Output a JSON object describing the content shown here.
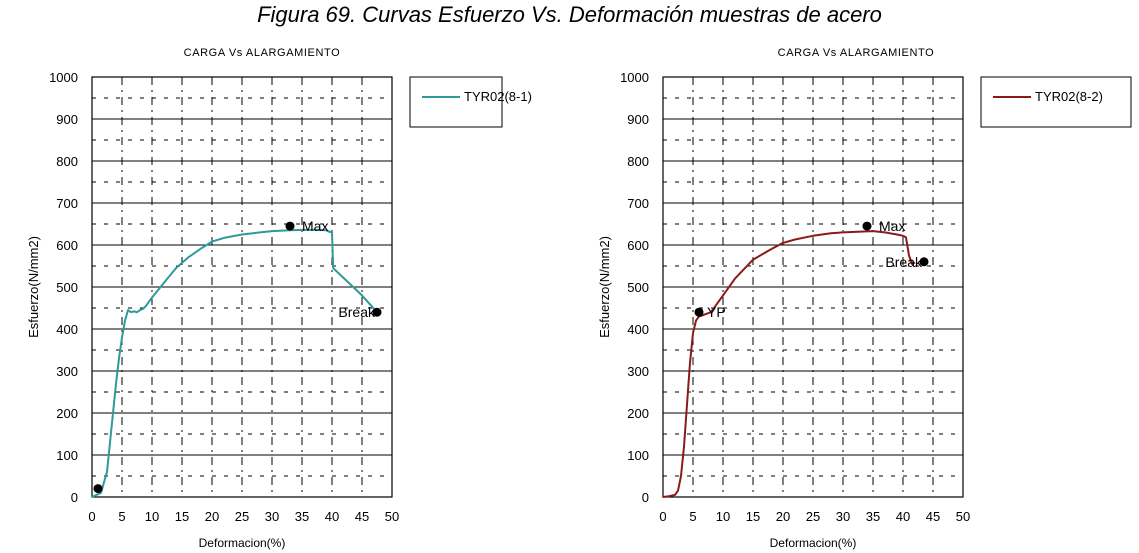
{
  "figure_title": "Figura 69. Curvas Esfuerzo Vs. Deformación muestras de acero",
  "chart_data": [
    {
      "type": "line",
      "title": "CARGA Vs ALARGAMIENTO",
      "xlabel": "Deformacion(%)",
      "ylabel": "Esfuerzo(N/mm2)",
      "xlim": [
        0,
        50
      ],
      "ylim": [
        0,
        1000
      ],
      "xticks": [
        "0",
        "5",
        "10",
        "15",
        "20",
        "25",
        "30",
        "35",
        "40",
        "45",
        "50"
      ],
      "yticks": [
        "0",
        "100",
        "200",
        "300",
        "400",
        "500",
        "600",
        "700",
        "800",
        "900",
        "1000"
      ],
      "grid": true,
      "legend": "right",
      "series": [
        {
          "name": "TYR02(8-1)",
          "color": "#2e9a9a",
          "x": [
            0,
            1.5,
            2.5,
            3,
            3.5,
            4,
            4.5,
            5,
            5.5,
            6,
            6.5,
            7,
            7.5,
            8,
            8.5,
            9,
            10,
            12,
            14,
            16,
            18,
            20,
            22,
            25,
            28,
            30,
            33,
            35,
            37,
            38,
            39,
            39.5,
            40,
            40.2,
            45,
            47.5
          ],
          "y": [
            0,
            10,
            60,
            130,
            200,
            270,
            330,
            380,
            420,
            445,
            440,
            442,
            440,
            445,
            448,
            455,
            475,
            510,
            545,
            570,
            590,
            608,
            617,
            625,
            630,
            633,
            635,
            636,
            636,
            636,
            635,
            632,
            630,
            545,
            480,
            440
          ]
        }
      ],
      "annotations": [
        {
          "text": "Max",
          "x": 33,
          "y": 645
        },
        {
          "text": "Break",
          "x": 47.5,
          "y": 440
        },
        {
          "text": "",
          "x": 1,
          "y": 20
        }
      ]
    },
    {
      "type": "line",
      "title": "CARGA Vs ALARGAMIENTO",
      "xlabel": "Deformacion(%)",
      "ylabel": "Esfuerzo(N/mm2)",
      "xlim": [
        0,
        50
      ],
      "ylim": [
        0,
        1000
      ],
      "xticks": [
        "0",
        "5",
        "10",
        "15",
        "20",
        "25",
        "30",
        "35",
        "40",
        "45",
        "50"
      ],
      "yticks": [
        "0",
        "100",
        "200",
        "300",
        "400",
        "500",
        "600",
        "700",
        "800",
        "900",
        "1000"
      ],
      "grid": true,
      "legend": "right",
      "series": [
        {
          "name": "TYR02(8-2)",
          "color": "#8b1a1a",
          "x": [
            0,
            1,
            2,
            2.5,
            3,
            3.5,
            4,
            4.5,
            5,
            5.5,
            6,
            6.5,
            7,
            8,
            9,
            10,
            12,
            15,
            18,
            20,
            22,
            25,
            28,
            30,
            33,
            35,
            37,
            39,
            40,
            40.5,
            41,
            41.5,
            42
          ],
          "y": [
            0,
            2,
            5,
            15,
            50,
            120,
            220,
            320,
            390,
            420,
            430,
            432,
            435,
            440,
            460,
            480,
            520,
            565,
            590,
            605,
            613,
            622,
            628,
            630,
            632,
            633,
            630,
            625,
            622,
            618,
            575,
            555,
            558
          ]
        }
      ],
      "annotations": [
        {
          "text": "Max",
          "x": 34,
          "y": 645
        },
        {
          "text": "YP",
          "x": 6,
          "y": 440
        },
        {
          "text": "Break",
          "x": 43.5,
          "y": 560
        }
      ]
    }
  ]
}
